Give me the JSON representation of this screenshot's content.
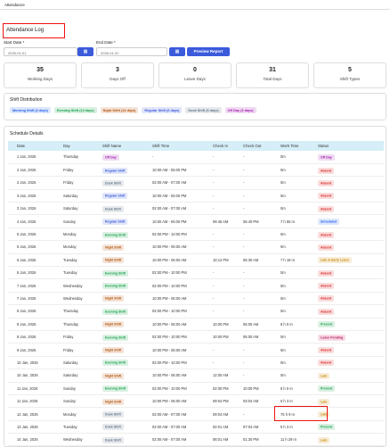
{
  "tab": "Attendance",
  "title": "Attendance Log",
  "start_label": "Start Date *",
  "start_value": "2026-01-01",
  "end_label": "End Date *",
  "end_value": "2026-01-31",
  "button": "Preview Report",
  "stats": [
    {
      "value": 35,
      "label": "Working Days"
    },
    {
      "value": 3,
      "label": "Days Off"
    },
    {
      "value": 0,
      "label": "Leave Days"
    },
    {
      "value": 31,
      "label": "Total Days"
    },
    {
      "value": 5,
      "label": "Shift Types"
    }
  ],
  "distribution": {
    "title": "Shift Distribution",
    "chips": [
      {
        "label": "Morning Shift (2 days)",
        "color": "#2563eb"
      },
      {
        "label": "Evening Shift (13 days)",
        "color": "#16a34a"
      },
      {
        "label": "Night Shift (13 days)",
        "color": "#b45309"
      },
      {
        "label": "Regular Shift (6 days)",
        "color": "#3b5bdb"
      },
      {
        "label": "Dusk Shift (6 days)",
        "color": "#64748b"
      },
      {
        "label": "Off Day (3 days)",
        "color": "#a21caf"
      }
    ]
  },
  "schedule": {
    "title": "Schedule Details",
    "columns": [
      "Date",
      "Day",
      "Shift Name",
      "Shift Time",
      "Check In",
      "Check Out",
      "Work Time",
      "Status"
    ],
    "rows": [
      [
        "1 Jan, 2026",
        "Thursday",
        "Off Day",
        "-",
        "-",
        "-",
        "0m",
        "Off Day"
      ],
      [
        "2 Jan, 2026",
        "Friday",
        "Regular Shift",
        "10:00 AM - 06:00 PM",
        "-",
        "-",
        "0m",
        "Absent"
      ],
      [
        "2 Jan, 2026",
        "Friday",
        "Dusk Shift",
        "02:00 AM - 07:00 AM",
        "-",
        "-",
        "0m",
        "Absent"
      ],
      [
        "3 Jan, 2026",
        "Saturday",
        "Regular Shift",
        "10:00 AM - 06:00 PM",
        "-",
        "-",
        "0m",
        "Absent"
      ],
      [
        "3 Jan, 2026",
        "Saturday",
        "Dusk Shift",
        "02:00 AM - 07:00 AM",
        "-",
        "-",
        "0m",
        "Absent"
      ],
      [
        "4 Jan, 2026",
        "Sunday",
        "Regular Shift",
        "10:00 AM - 06:00 PM",
        "09:45 AM",
        "05:40 PM",
        "7 h 55 m",
        "Scheduled"
      ],
      [
        "5 Jan, 2026",
        "Monday",
        "Evening Shift",
        "02:00 PM - 10:00 PM",
        "-",
        "-",
        "0m",
        "Absent"
      ],
      [
        "5 Jan, 2026",
        "Monday",
        "Night Shift",
        "10:00 PM - 06:00 AM",
        "-",
        "-",
        "0m",
        "Absent"
      ],
      [
        "6 Jan, 2026",
        "Tuesday",
        "Night Shift",
        "10:00 PM - 06:00 AM",
        "10:12 PM",
        "05:30 AM",
        "7 h 18 m",
        "Late & Early Leave"
      ],
      [
        "6 Jan, 2026",
        "Tuesday",
        "Evening Shift",
        "02:00 PM - 10:00 PM",
        "-",
        "-",
        "0m",
        "Absent"
      ],
      [
        "7 Jan, 2026",
        "Wednesday",
        "Evening Shift",
        "02:00 PM - 10:00 PM",
        "-",
        "-",
        "0m",
        "Absent"
      ],
      [
        "7 Jan, 2026",
        "Wednesday",
        "Night Shift",
        "10:00 PM - 06:00 AM",
        "-",
        "-",
        "0m",
        "Absent"
      ],
      [
        "8 Jan, 2026",
        "Thursday",
        "Evening Shift",
        "02:00 PM - 10:00 PM",
        "-",
        "-",
        "0m",
        "Absent"
      ],
      [
        "8 Jan, 2026",
        "Thursday",
        "Night Shift",
        "10:00 PM - 06:00 AM",
        "10:00 PM",
        "06:00 AM",
        "8 h 0 m",
        "Present"
      ],
      [
        "9 Jan, 2026",
        "Friday",
        "Evening Shift",
        "02:00 PM - 10:00 PM",
        "10:00 PM",
        "06:00 AM",
        "0m",
        "Leave Pending"
      ],
      [
        "9 Jan, 2026",
        "Friday",
        "Night Shift",
        "10:00 PM - 06:00 AM",
        "-",
        "-",
        "0m",
        "Absent"
      ],
      [
        "10 Jan, 2026",
        "Saturday",
        "Evening Shift",
        "02:00 PM - 10:00 PM",
        "-",
        "-",
        "0m",
        "Absent"
      ],
      [
        "10 Jan, 2026",
        "Saturday",
        "Night Shift",
        "10:00 PM - 06:00 AM",
        "12:00 AM",
        "-",
        "0m",
        "Late"
      ],
      [
        "11 Jan, 2026",
        "Sunday",
        "Evening Shift",
        "02:00 PM - 10:00 PM",
        "02:00 PM",
        "10:00 PM",
        "8 h 0 m",
        "Present"
      ],
      [
        "11 Jan, 2026",
        "Sunday",
        "Night Shift",
        "10:00 PM - 06:00 AM",
        "09:04 PM",
        "03:04 AM",
        "6 h 3 m",
        "Late"
      ],
      [
        "12 Jan, 2026",
        "Monday",
        "Dusk Shift",
        "02:00 AM - 07:00 AM",
        "09:04 AM",
        "-",
        "75 h 9 m",
        "Late"
      ],
      [
        "13 Jan, 2026",
        "Tuesday",
        "Dusk Shift",
        "02:00 AM - 07:00 AM",
        "02:01 AM",
        "07:04 AM",
        "5 h 3 m",
        "Present"
      ],
      [
        "14 Jan, 2026",
        "Wednesday",
        "Dusk Shift",
        "02:00 AM - 07:00 AM",
        "08:01 AM",
        "01:30 PM",
        "11 h 29 m",
        "Late"
      ]
    ],
    "shift_colors": [
      "#a21caf",
      "#3b5bdb",
      "#64748b",
      "#3b5bdb",
      "#64748b",
      "#3b5bdb",
      "#16a34a",
      "#b45309",
      "#b45309",
      "#16a34a",
      "#16a34a",
      "#b45309",
      "#16a34a",
      "#b45309",
      "#16a34a",
      "#b45309",
      "#16a34a",
      "#b45309",
      "#16a34a",
      "#b45309",
      "#64748b",
      "#64748b",
      "#64748b"
    ],
    "status_colors": [
      "#a21caf",
      "#dc2626",
      "#dc2626",
      "#dc2626",
      "#dc2626",
      "#2563eb",
      "#dc2626",
      "#dc2626",
      "#ca8a04",
      "#dc2626",
      "#dc2626",
      "#dc2626",
      "#dc2626",
      "#16a34a",
      "#be185d",
      "#dc2626",
      "#dc2626",
      "#ca8a04",
      "#16a34a",
      "#ca8a04",
      "#ca8a04",
      "#16a34a",
      "#ca8a04"
    ]
  }
}
